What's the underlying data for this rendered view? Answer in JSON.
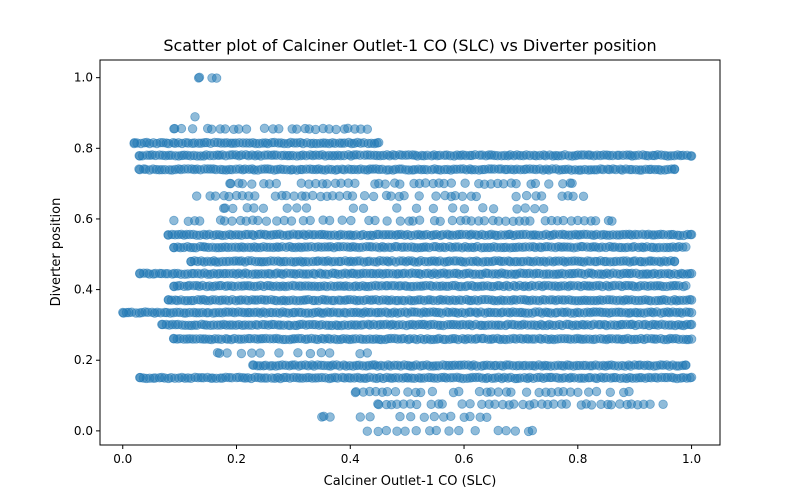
{
  "chart_data": {
    "type": "scatter",
    "title": "Scatter plot of Calciner Outlet-1 CO (SLC) vs Diverter position",
    "xlabel": "Calciner Outlet-1 CO (SLC)",
    "ylabel": "Diverter position",
    "xlim": [
      -0.04,
      1.05
    ],
    "ylim": [
      -0.04,
      1.05
    ],
    "xticks": [
      "0.0",
      "0.2",
      "0.4",
      "0.6",
      "0.8",
      "1.0"
    ],
    "yticks": [
      "0.0",
      "0.2",
      "0.4",
      "0.6",
      "0.8",
      "1.0"
    ],
    "grid": false,
    "marker_color": "#1f77b4",
    "marker_alpha": 0.5,
    "bands": [
      {
        "y": 1.0,
        "x_min": 0.135,
        "x_max": 0.165,
        "density": "sparse"
      },
      {
        "y": 0.89,
        "x_min": 0.127,
        "x_max": 0.127,
        "density": "single"
      },
      {
        "y": 0.855,
        "x_min": 0.09,
        "x_max": 0.43,
        "density": "medium"
      },
      {
        "y": 0.815,
        "x_min": 0.02,
        "x_max": 0.45,
        "density": "dense"
      },
      {
        "y": 0.78,
        "x_min": 0.03,
        "x_max": 1.0,
        "density": "dense"
      },
      {
        "y": 0.74,
        "x_min": 0.03,
        "x_max": 0.97,
        "density": "dense"
      },
      {
        "y": 0.7,
        "x_min": 0.19,
        "x_max": 0.79,
        "density": "medium"
      },
      {
        "y": 0.665,
        "x_min": 0.13,
        "x_max": 0.81,
        "density": "medium"
      },
      {
        "y": 0.63,
        "x_min": 0.18,
        "x_max": 0.74,
        "density": "sparse"
      },
      {
        "y": 0.595,
        "x_min": 0.09,
        "x_max": 0.86,
        "density": "medium"
      },
      {
        "y": 0.555,
        "x_min": 0.08,
        "x_max": 1.0,
        "density": "dense"
      },
      {
        "y": 0.52,
        "x_min": 0.09,
        "x_max": 0.99,
        "density": "dense"
      },
      {
        "y": 0.48,
        "x_min": 0.12,
        "x_max": 0.97,
        "density": "dense"
      },
      {
        "y": 0.445,
        "x_min": 0.03,
        "x_max": 1.0,
        "density": "dense"
      },
      {
        "y": 0.41,
        "x_min": 0.09,
        "x_max": 0.99,
        "density": "dense"
      },
      {
        "y": 0.37,
        "x_min": 0.08,
        "x_max": 1.0,
        "density": "dense"
      },
      {
        "y": 0.335,
        "x_min": 0.0,
        "x_max": 1.0,
        "density": "dense"
      },
      {
        "y": 0.3,
        "x_min": 0.07,
        "x_max": 1.0,
        "density": "dense"
      },
      {
        "y": 0.26,
        "x_min": 0.09,
        "x_max": 1.0,
        "density": "dense"
      },
      {
        "y": 0.22,
        "x_min": 0.17,
        "x_max": 0.43,
        "density": "sparse"
      },
      {
        "y": 0.185,
        "x_min": 0.23,
        "x_max": 0.99,
        "density": "dense"
      },
      {
        "y": 0.15,
        "x_min": 0.03,
        "x_max": 1.0,
        "density": "dense"
      },
      {
        "y": 0.11,
        "x_min": 0.41,
        "x_max": 0.89,
        "density": "medium"
      },
      {
        "y": 0.075,
        "x_min": 0.45,
        "x_max": 0.95,
        "density": "medium"
      },
      {
        "y": 0.04,
        "x_min": 0.35,
        "x_max": 0.64,
        "density": "sparse"
      },
      {
        "y": 0.0,
        "x_min": 0.43,
        "x_max": 0.72,
        "density": "sparse"
      }
    ]
  }
}
